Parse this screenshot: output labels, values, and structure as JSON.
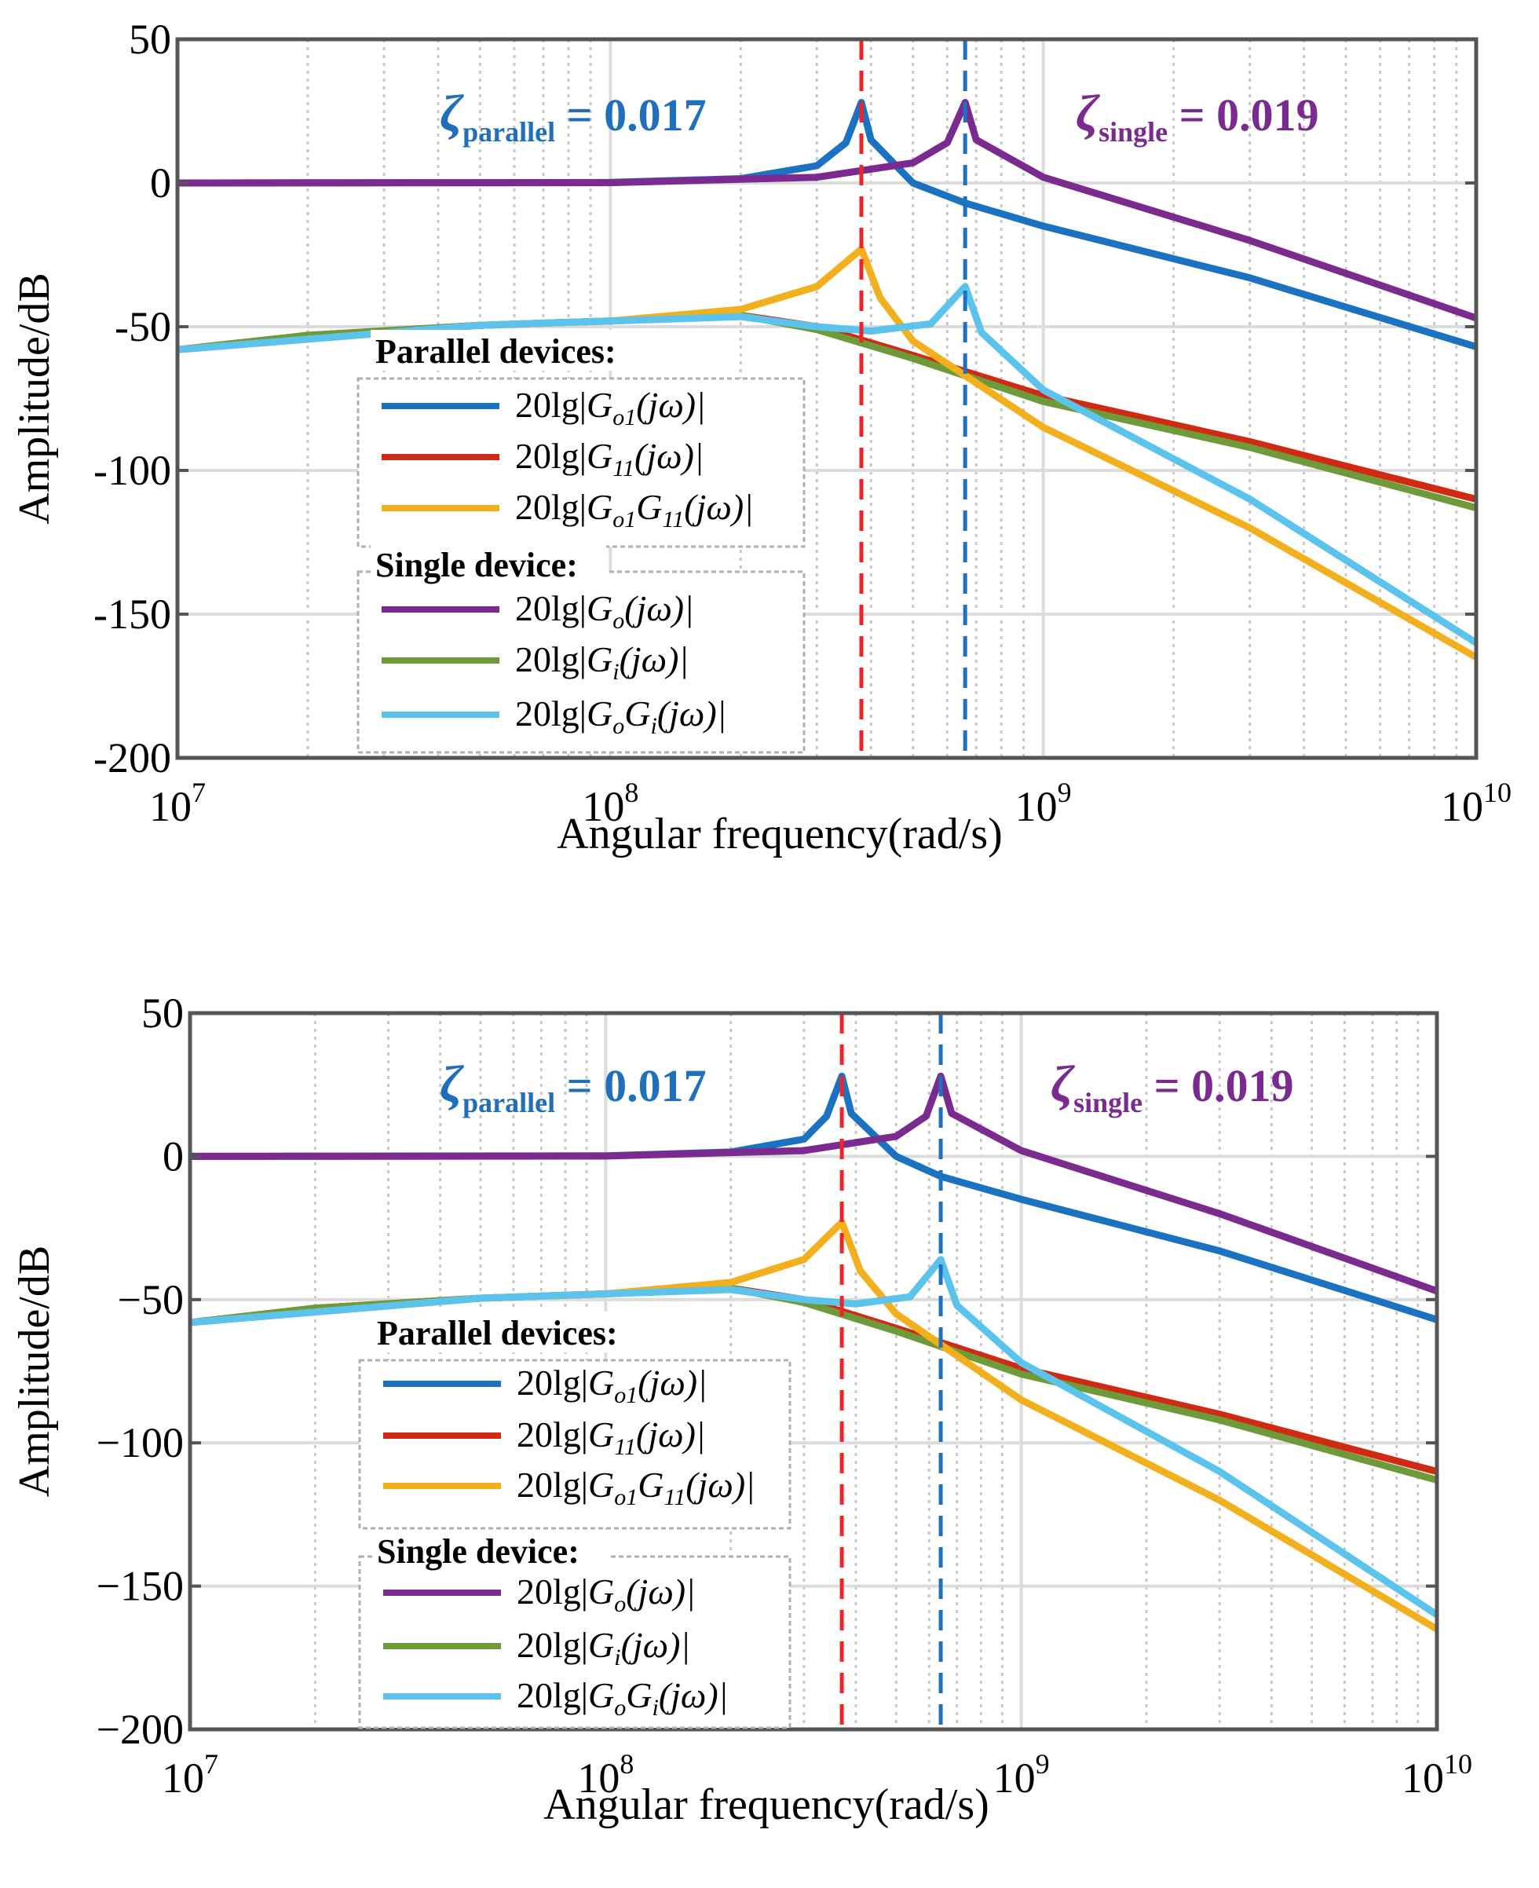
{
  "figure": {
    "description_free": true
  },
  "chart_data": [
    {
      "type": "line",
      "panel": "top",
      "xscale": "log",
      "xlim": [
        10000000,
        10000000000
      ],
      "ylim": [
        -200,
        50
      ],
      "xlabel": "Angular frequency(rad/s)",
      "ylabel": "Amplitude/dB",
      "xticks": [
        {
          "base": "10",
          "exp": "7"
        },
        {
          "base": "10",
          "exp": "8"
        },
        {
          "base": "10",
          "exp": "9"
        },
        {
          "base": "10",
          "exp": "10"
        }
      ],
      "yticks": [
        "50",
        "0",
        "-50",
        "-100",
        "-150",
        "-200"
      ],
      "grid": true,
      "legend_groups": [
        {
          "title": "Parallel devices:",
          "series": [
            "Go1",
            "G11",
            "Go1G11"
          ]
        },
        {
          "title": "Single device:",
          "series": [
            "Go",
            "Gi",
            "GoGi"
          ]
        }
      ],
      "annotations": [
        {
          "symbol": "ζ",
          "subscript": "parallel",
          "text": " = 0.017",
          "color": "#1f6fba"
        },
        {
          "symbol": "ζ",
          "subscript": "single",
          "text": " = 0.019",
          "color": "#7b2a90"
        }
      ],
      "vlines": [
        {
          "x": 380000000,
          "color": "#f0232a",
          "style": "dashed"
        },
        {
          "x": 660000000,
          "color": "#1a72c0",
          "style": "dashed"
        }
      ],
      "series": [
        {
          "id": "Go1",
          "label_prefix": "20lg|",
          "label_math": "G",
          "label_sub": "o1",
          "label_suffix": "(jω)|",
          "color": "#1a72c0",
          "x": [
            10000000,
            100000000,
            200000000,
            300000000,
            350000000,
            380000000,
            400000000,
            500000000,
            660000000,
            1000000000,
            3000000000,
            10000000000
          ],
          "y": [
            0,
            0.2,
            1.5,
            6,
            14,
            28,
            15,
            0,
            -7,
            -15,
            -33,
            -57
          ]
        },
        {
          "id": "G11",
          "label_prefix": "20lg|",
          "label_math": "G",
          "label_sub": "11",
          "label_suffix": "(jω)|",
          "color": "#d02a14",
          "x": [
            10000000,
            20000000,
            50000000,
            100000000,
            200000000,
            300000000,
            500000000,
            1000000000,
            3000000000,
            10000000000
          ],
          "y": [
            -58,
            -53,
            -49.5,
            -48,
            -46,
            -50,
            -60,
            -74,
            -90,
            -110
          ]
        },
        {
          "id": "Go1G11",
          "label_prefix": "20lg|",
          "label_math": "G",
          "label_sub": "o1",
          "label_math2": "G",
          "label_sub2": "11",
          "label_suffix": "(jω)|",
          "color": "#f2b01e",
          "x": [
            10000000,
            50000000,
            100000000,
            200000000,
            300000000,
            380000000,
            420000000,
            500000000,
            1000000000,
            3000000000,
            10000000000
          ],
          "y": [
            -58,
            -49.5,
            -48,
            -44,
            -36,
            -23,
            -40,
            -55,
            -85,
            -120,
            -165
          ]
        },
        {
          "id": "Go",
          "label_prefix": "20lg|",
          "label_math": "G",
          "label_sub": "o",
          "label_suffix": "(jω)|",
          "color": "#7b2a90",
          "x": [
            10000000,
            100000000,
            300000000,
            500000000,
            600000000,
            660000000,
            700000000,
            1000000000,
            3000000000,
            10000000000
          ],
          "y": [
            0,
            0.1,
            2,
            7,
            14,
            28,
            15,
            2,
            -20,
            -47
          ]
        },
        {
          "id": "Gi",
          "label_prefix": "20lg|",
          "label_math": "G",
          "label_sub": "i",
          "label_suffix": "(jω)|",
          "color": "#6f9a3a",
          "x": [
            10000000,
            20000000,
            50000000,
            100000000,
            200000000,
            300000000,
            500000000,
            1000000000,
            3000000000,
            10000000000
          ],
          "y": [
            -58,
            -53,
            -49.5,
            -48,
            -46,
            -51,
            -61,
            -76,
            -92,
            -113
          ]
        },
        {
          "id": "GoGi",
          "label_prefix": "20lg|",
          "label_math": "G",
          "label_sub": "o",
          "label_math2": "G",
          "label_sub2": "i",
          "label_suffix": "(jω)|",
          "color": "#5bc3ec",
          "x": [
            10000000,
            50000000,
            100000000,
            200000000,
            300000000,
            400000000,
            550000000,
            660000000,
            720000000,
            1000000000,
            3000000000,
            10000000000
          ],
          "y": [
            -58,
            -49.5,
            -48,
            -46.5,
            -50,
            -51.5,
            -49,
            -36,
            -52,
            -72,
            -110,
            -160
          ]
        }
      ]
    },
    {
      "type": "line",
      "panel": "bottom",
      "xscale": "log",
      "xlim": [
        10000000,
        10000000000
      ],
      "ylim": [
        -200,
        50
      ],
      "xlabel": "Angular frequency(rad/s)",
      "ylabel": "Amplitude/dB",
      "xticks": [
        {
          "base": "10",
          "exp": "7"
        },
        {
          "base": "10",
          "exp": "8"
        },
        {
          "base": "10",
          "exp": "9"
        },
        {
          "base": "10",
          "exp": "10"
        }
      ],
      "yticks": [
        "50",
        "0",
        "−50",
        "−100",
        "−150",
        "−200"
      ],
      "grid": true,
      "legend_groups": [
        {
          "title": "Parallel devices:",
          "series": [
            "Go1",
            "G11",
            "Go1G11"
          ]
        },
        {
          "title": "Single device:",
          "series": [
            "Go",
            "Gi",
            "GoGi"
          ]
        }
      ],
      "annotations": [
        {
          "symbol": "ζ",
          "subscript": "parallel",
          "text": " = 0.017",
          "color": "#1f6fba"
        },
        {
          "symbol": "ζ",
          "subscript": "single",
          "text": " = 0.019",
          "color": "#7b2a90"
        }
      ],
      "vlines": [
        {
          "x": 370000000,
          "color": "#f0232a",
          "style": "dashed"
        },
        {
          "x": 640000000,
          "color": "#1a72c0",
          "style": "dashed"
        }
      ],
      "series": [
        {
          "id": "Go1",
          "label_prefix": "20lg|",
          "label_math": "G",
          "label_sub": "o1",
          "label_suffix": "(jω)|",
          "color": "#1a72c0",
          "x": [
            10000000,
            100000000,
            200000000,
            300000000,
            340000000,
            370000000,
            390000000,
            500000000,
            640000000,
            1000000000,
            3000000000,
            10000000000
          ],
          "y": [
            0,
            0.2,
            1.5,
            6,
            14,
            28,
            15,
            0,
            -7,
            -15,
            -33,
            -57
          ]
        },
        {
          "id": "G11",
          "label_prefix": "20lg|",
          "label_math": "G",
          "label_sub": "11",
          "label_suffix": "(jω)|",
          "color": "#d02a14",
          "x": [
            10000000,
            20000000,
            50000000,
            100000000,
            200000000,
            300000000,
            500000000,
            1000000000,
            3000000000,
            10000000000
          ],
          "y": [
            -58,
            -53,
            -49.5,
            -48,
            -46,
            -50,
            -60,
            -74,
            -90,
            -110
          ]
        },
        {
          "id": "Go1G11",
          "label_prefix": "20lg|",
          "label_math": "G",
          "label_sub": "o1",
          "label_math2": "G",
          "label_sub2": "11",
          "label_suffix": "(jω)|",
          "color": "#f2b01e",
          "x": [
            10000000,
            50000000,
            100000000,
            200000000,
            300000000,
            370000000,
            410000000,
            500000000,
            1000000000,
            3000000000,
            10000000000
          ],
          "y": [
            -58,
            -49.5,
            -48,
            -44,
            -36,
            -23,
            -40,
            -55,
            -85,
            -120,
            -165
          ]
        },
        {
          "id": "Go",
          "label_prefix": "20lg|",
          "label_math": "G",
          "label_sub": "o",
          "label_suffix": "(jω)|",
          "color": "#7b2a90",
          "x": [
            10000000,
            100000000,
            300000000,
            500000000,
            590000000,
            640000000,
            680000000,
            1000000000,
            3000000000,
            10000000000
          ],
          "y": [
            0,
            0.1,
            2,
            7,
            14,
            28,
            15,
            2,
            -20,
            -47
          ]
        },
        {
          "id": "Gi",
          "label_prefix": "20lg|",
          "label_math": "G",
          "label_sub": "i",
          "label_suffix": "(jω)|",
          "color": "#6f9a3a",
          "x": [
            10000000,
            20000000,
            50000000,
            100000000,
            200000000,
            300000000,
            500000000,
            1000000000,
            3000000000,
            10000000000
          ],
          "y": [
            -58,
            -53,
            -49.5,
            -48,
            -46,
            -51,
            -61,
            -76,
            -92,
            -113
          ]
        },
        {
          "id": "GoGi",
          "label_prefix": "20lg|",
          "label_math": "G",
          "label_sub": "o",
          "label_math2": "G",
          "label_sub2": "i",
          "label_suffix": "(jω)|",
          "color": "#5bc3ec",
          "x": [
            10000000,
            50000000,
            100000000,
            200000000,
            300000000,
            400000000,
            540000000,
            640000000,
            700000000,
            1000000000,
            3000000000,
            10000000000
          ],
          "y": [
            -58,
            -49.5,
            -48,
            -46.5,
            -50,
            -51.5,
            -49,
            -36,
            -52,
            -72,
            -110,
            -160
          ]
        }
      ]
    }
  ]
}
